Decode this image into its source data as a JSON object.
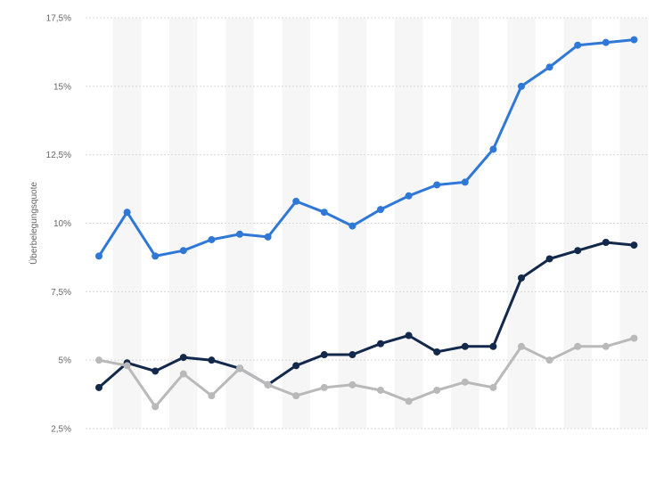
{
  "chart_data": {
    "type": "line",
    "ylabel": "Überbelegungsquote",
    "ylim": [
      2.5,
      17.5
    ],
    "yticks": [
      2.5,
      5,
      7.5,
      10,
      12.5,
      15,
      17.5
    ],
    "ytick_labels": [
      "2,5%",
      "5%",
      "7,5%",
      "10%",
      "12,5%",
      "15%",
      "17,5%"
    ],
    "grid": true,
    "x_count": 20,
    "series": [
      {
        "color": "#2f78d8",
        "values": [
          8.8,
          10.4,
          8.8,
          9.0,
          9.4,
          9.6,
          9.5,
          10.8,
          10.4,
          9.9,
          10.5,
          11.0,
          11.4,
          11.5,
          12.7,
          15.0,
          15.7,
          16.5,
          16.6,
          16.7
        ]
      },
      {
        "color": "#13294b",
        "values": [
          4.0,
          4.9,
          4.6,
          5.1,
          5.0,
          4.7,
          4.1,
          4.8,
          5.2,
          5.2,
          5.6,
          5.9,
          5.3,
          5.5,
          5.5,
          8.0,
          8.7,
          9.0,
          9.3,
          9.2
        ]
      },
      {
        "color": "#b9b9b9",
        "values": [
          5.0,
          4.8,
          3.3,
          4.5,
          3.7,
          4.7,
          4.1,
          3.7,
          4.0,
          4.1,
          3.9,
          3.5,
          3.9,
          4.2,
          4.0,
          5.5,
          5.0,
          5.5,
          5.5,
          5.8
        ]
      }
    ],
    "band_color": "#f6f6f6",
    "grid_color": "#d9d9d9"
  }
}
